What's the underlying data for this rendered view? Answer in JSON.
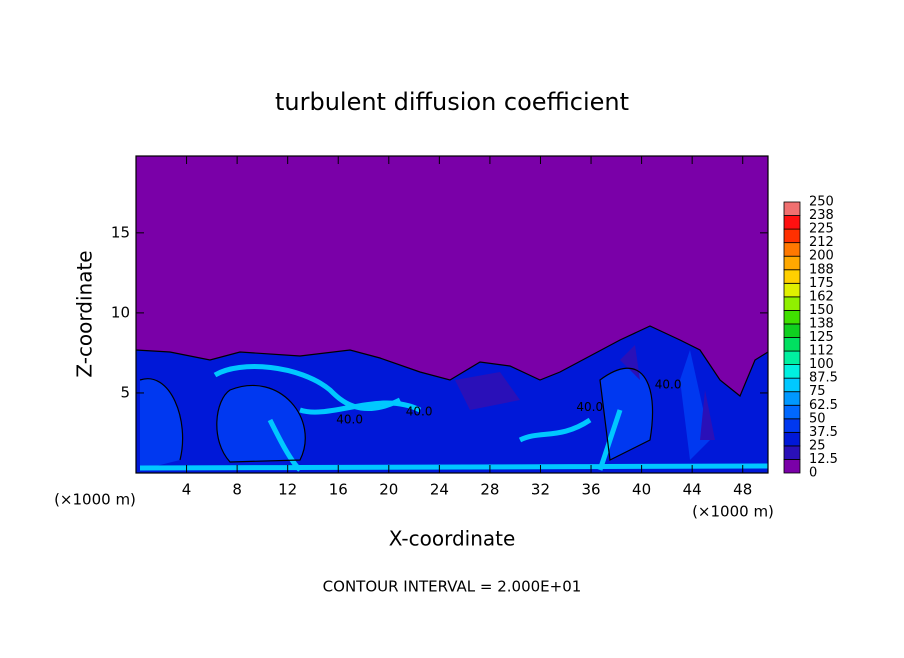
{
  "chart_data": {
    "type": "contour",
    "title": "turbulent diffusion coefficient",
    "xlabel": "X-coordinate",
    "ylabel": "Z-coordinate",
    "unit_labels": [
      "(×1000 m)",
      "(×1000 m)"
    ],
    "footer": "CONTOUR INTERVAL = 2.000E+01",
    "xlim": [
      0,
      50
    ],
    "xticks": [
      4,
      8,
      12,
      16,
      20,
      24,
      28,
      32,
      36,
      40,
      44,
      48
    ],
    "ylim": [
      0,
      19.8
    ],
    "yticks": [
      5,
      10,
      15
    ],
    "levels": [
      0,
      12.5,
      25,
      37.5,
      50,
      62.5,
      75,
      87.5,
      100,
      112,
      125,
      138,
      150,
      162,
      175,
      188,
      200,
      212,
      225,
      238,
      250
    ],
    "colors": [
      "#7a00a8",
      "#2a10b8",
      "#0018d8",
      "#0038f0",
      "#0068ff",
      "#0098ff",
      "#00c8ff",
      "#00f0e0",
      "#00f0a0",
      "#00e060",
      "#10d020",
      "#40e000",
      "#90f000",
      "#e0f000",
      "#ffd000",
      "#ffa800",
      "#ff7800",
      "#ff3000",
      "#ff1010",
      "#f07070"
    ],
    "contour_labels": [
      {
        "value": 40,
        "label": "40.0",
        "x": 16.9,
        "z": 3.3
      },
      {
        "value": 40,
        "label": "40.0",
        "x": 22.4,
        "z": 3.8
      },
      {
        "value": 40,
        "label": "40.0",
        "x": 35.9,
        "z": 4.1
      },
      {
        "value": 40,
        "label": "40.0",
        "x": 42.1,
        "z": 5.5
      }
    ]
  }
}
